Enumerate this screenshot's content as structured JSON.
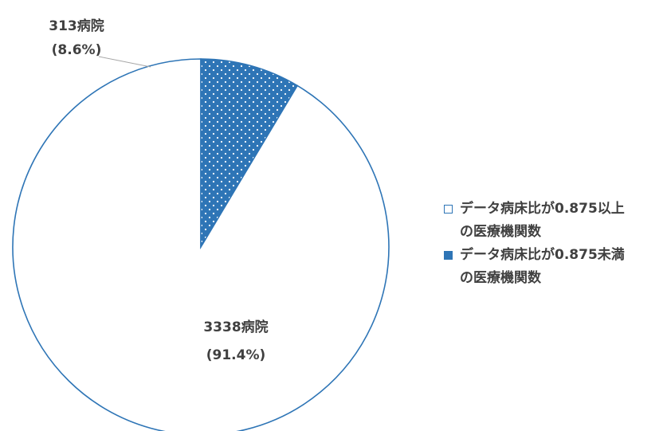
{
  "chart_data": {
    "type": "pie",
    "start_angle_deg": 0,
    "direction": "counterclockwise",
    "slices": [
      {
        "legend": "データ病床比が0.875以上\nの医療機関数",
        "value": 3338,
        "value_label": "3338病院",
        "percent": 91.4,
        "percent_label": "(91.4%)",
        "fill": "#ffffff",
        "stroke": "#2e75b6",
        "pattern": "none"
      },
      {
        "legend": "データ病床比が0.875未満\nの医療機関数",
        "value": 313,
        "value_label": "313病院",
        "percent": 8.6,
        "percent_label": "(8.6%)",
        "fill": "#2e75b6",
        "stroke": "#2e75b6",
        "pattern": "white-dots"
      }
    ],
    "legend_position": "right",
    "title": ""
  }
}
